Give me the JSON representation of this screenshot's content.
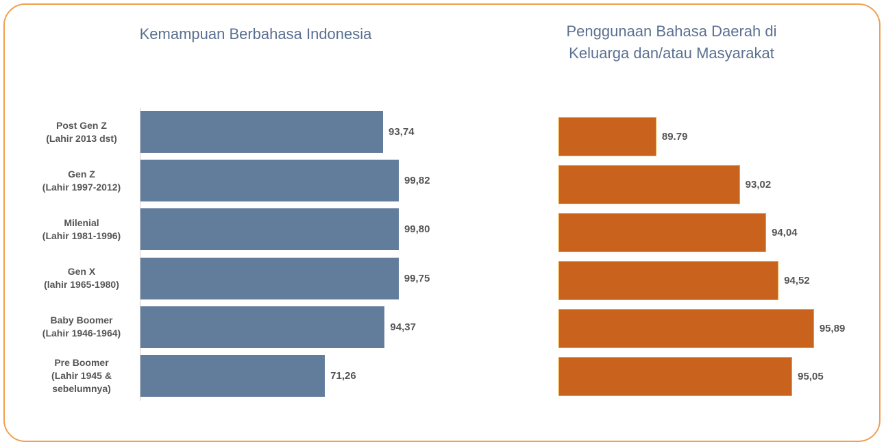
{
  "chart_data": [
    {
      "type": "hbar",
      "title": "Kemampuan Berbahasa Indonesia",
      "categories": [
        "Post Gen Z\n(Lahir 2013 dst)",
        "Gen Z\n(Lahir 1997-2012)",
        "Milenial\n(Lahir 1981-1996)",
        "Gen X\n(lahir 1965-1980)",
        "Baby Boomer\n(Lahir 1946-1964)",
        "Pre Boomer\n(Lahir 1945 &\nsebelumnya)"
      ],
      "values": [
        93.74,
        99.82,
        99.8,
        99.75,
        94.37,
        71.26
      ],
      "value_labels": [
        "93,74",
        "99,82",
        "99,80",
        "99,75",
        "94,37",
        "71,26"
      ],
      "color": "#627c9c",
      "xlim": [
        0,
        100
      ]
    },
    {
      "type": "hbar",
      "title": "Penggunaan Bahasa Daerah di\nKeluarga dan/atau Masyarakat",
      "values": [
        89.79,
        93.02,
        94.04,
        94.52,
        95.89,
        95.05
      ],
      "value_labels": [
        "89.79",
        "93,02",
        "94,04",
        "94,52",
        "95,89",
        "95,05"
      ],
      "color": "#c8621c",
      "xlim": [
        86,
        96
      ]
    }
  ]
}
